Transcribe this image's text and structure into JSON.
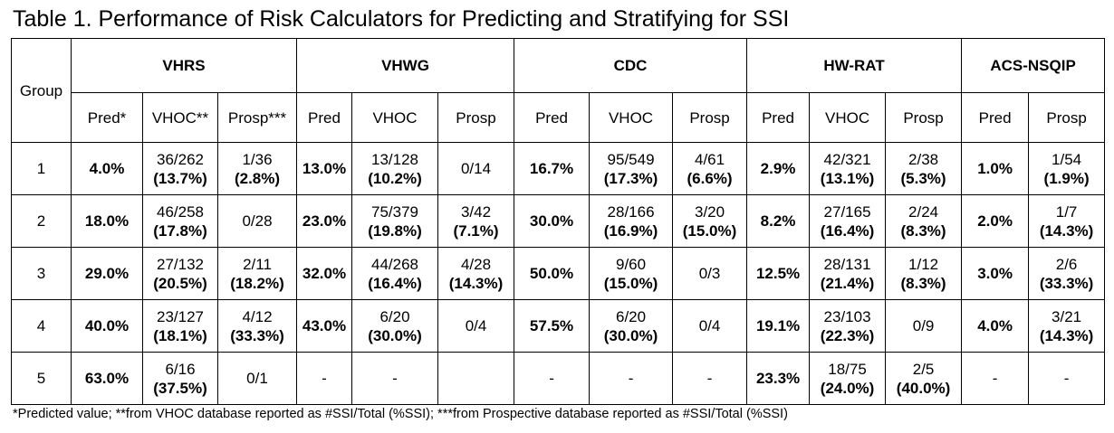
{
  "title": "Table 1. Performance of Risk Calculators for Predicting and Stratifying for SSI",
  "group_header": "Group",
  "calculators": [
    "VHRS",
    "VHWG",
    "CDC",
    "HW-RAT",
    "ACS-NSQIP"
  ],
  "subheaders": [
    "Pred*",
    "VHOC**",
    "Prosp***",
    "Pred",
    "VHOC",
    "Prosp",
    "Pred",
    "VHOC",
    "Prosp",
    "Pred",
    "VHOC",
    "Prosp",
    "Pred",
    "Prosp"
  ],
  "rows": [
    {
      "group": "1",
      "cells": [
        {
          "main": "4.0%"
        },
        {
          "main": "36/262",
          "pct": "(13.7%)"
        },
        {
          "main": "1/36",
          "pct": "(2.8%)"
        },
        {
          "main": "13.0%"
        },
        {
          "main": "13/128",
          "pct": "(10.2%)"
        },
        {
          "main": "0/14",
          "pct": ""
        },
        {
          "main": "16.7%"
        },
        {
          "main": "95/549",
          "pct": "(17.3%)"
        },
        {
          "main": "4/61",
          "pct": "(6.6%)"
        },
        {
          "main": "2.9%"
        },
        {
          "main": "42/321",
          "pct": "(13.1%)"
        },
        {
          "main": "2/38",
          "pct": "(5.3%)"
        },
        {
          "main": "1.0%"
        },
        {
          "main": "1/54",
          "pct": "(1.9%)"
        }
      ]
    },
    {
      "group": "2",
      "cells": [
        {
          "main": "18.0%"
        },
        {
          "main": "46/258",
          "pct": "(17.8%)"
        },
        {
          "main": "0/28",
          "pct": ""
        },
        {
          "main": "23.0%"
        },
        {
          "main": "75/379",
          "pct": "(19.8%)"
        },
        {
          "main": "3/42",
          "pct": "(7.1%)"
        },
        {
          "main": "30.0%"
        },
        {
          "main": "28/166",
          "pct": "(16.9%)"
        },
        {
          "main": "3/20",
          "pct": "(15.0%)"
        },
        {
          "main": "8.2%"
        },
        {
          "main": "27/165",
          "pct": "(16.4%)"
        },
        {
          "main": "2/24",
          "pct": "(8.3%)"
        },
        {
          "main": "2.0%"
        },
        {
          "main": "1/7",
          "pct": "(14.3%)"
        }
      ]
    },
    {
      "group": "3",
      "cells": [
        {
          "main": "29.0%"
        },
        {
          "main": "27/132",
          "pct": "(20.5%)"
        },
        {
          "main": "2/11",
          "pct": "(18.2%)"
        },
        {
          "main": "32.0%"
        },
        {
          "main": "44/268",
          "pct": "(16.4%)"
        },
        {
          "main": "4/28",
          "pct": "(14.3%)"
        },
        {
          "main": "50.0%"
        },
        {
          "main": "9/60",
          "pct": "(15.0%)"
        },
        {
          "main": "0/3",
          "pct": ""
        },
        {
          "main": "12.5%"
        },
        {
          "main": "28/131",
          "pct": "(21.4%)"
        },
        {
          "main": "1/12",
          "pct": "(8.3%)"
        },
        {
          "main": "3.0%"
        },
        {
          "main": "2/6",
          "pct": "(33.3%)"
        }
      ]
    },
    {
      "group": "4",
      "cells": [
        {
          "main": "40.0%"
        },
        {
          "main": "23/127",
          "pct": "(18.1%)"
        },
        {
          "main": "4/12",
          "pct": "(33.3%)"
        },
        {
          "main": "43.0%"
        },
        {
          "main": "6/20",
          "pct": "(30.0%)"
        },
        {
          "main": "0/4",
          "pct": ""
        },
        {
          "main": "57.5%"
        },
        {
          "main": "6/20",
          "pct": "(30.0%)"
        },
        {
          "main": "0/4",
          "pct": ""
        },
        {
          "main": "19.1%"
        },
        {
          "main": "23/103",
          "pct": "(22.3%)"
        },
        {
          "main": "0/9",
          "pct": ""
        },
        {
          "main": "4.0%"
        },
        {
          "main": "3/21",
          "pct": "(14.3%)"
        }
      ]
    },
    {
      "group": "5",
      "cells": [
        {
          "main": "63.0%"
        },
        {
          "main": "6/16",
          "pct": "(37.5%)"
        },
        {
          "main": "0/1",
          "pct": ""
        },
        {
          "main": "-"
        },
        {
          "main": "-",
          "pct": ""
        },
        {
          "main": "",
          "pct": ""
        },
        {
          "main": "-"
        },
        {
          "main": "-",
          "pct": ""
        },
        {
          "main": "-",
          "pct": ""
        },
        {
          "main": "23.3%"
        },
        {
          "main": "18/75",
          "pct": "(24.0%)"
        },
        {
          "main": "2/5",
          "pct": "(40.0%)"
        },
        {
          "main": "-"
        },
        {
          "main": "-",
          "pct": ""
        }
      ]
    }
  ],
  "footnote": "*Predicted value; **from VHOC database reported as #SSI/Total (%SSI); ***from Prospective database reported as #SSI/Total (%SSI)"
}
